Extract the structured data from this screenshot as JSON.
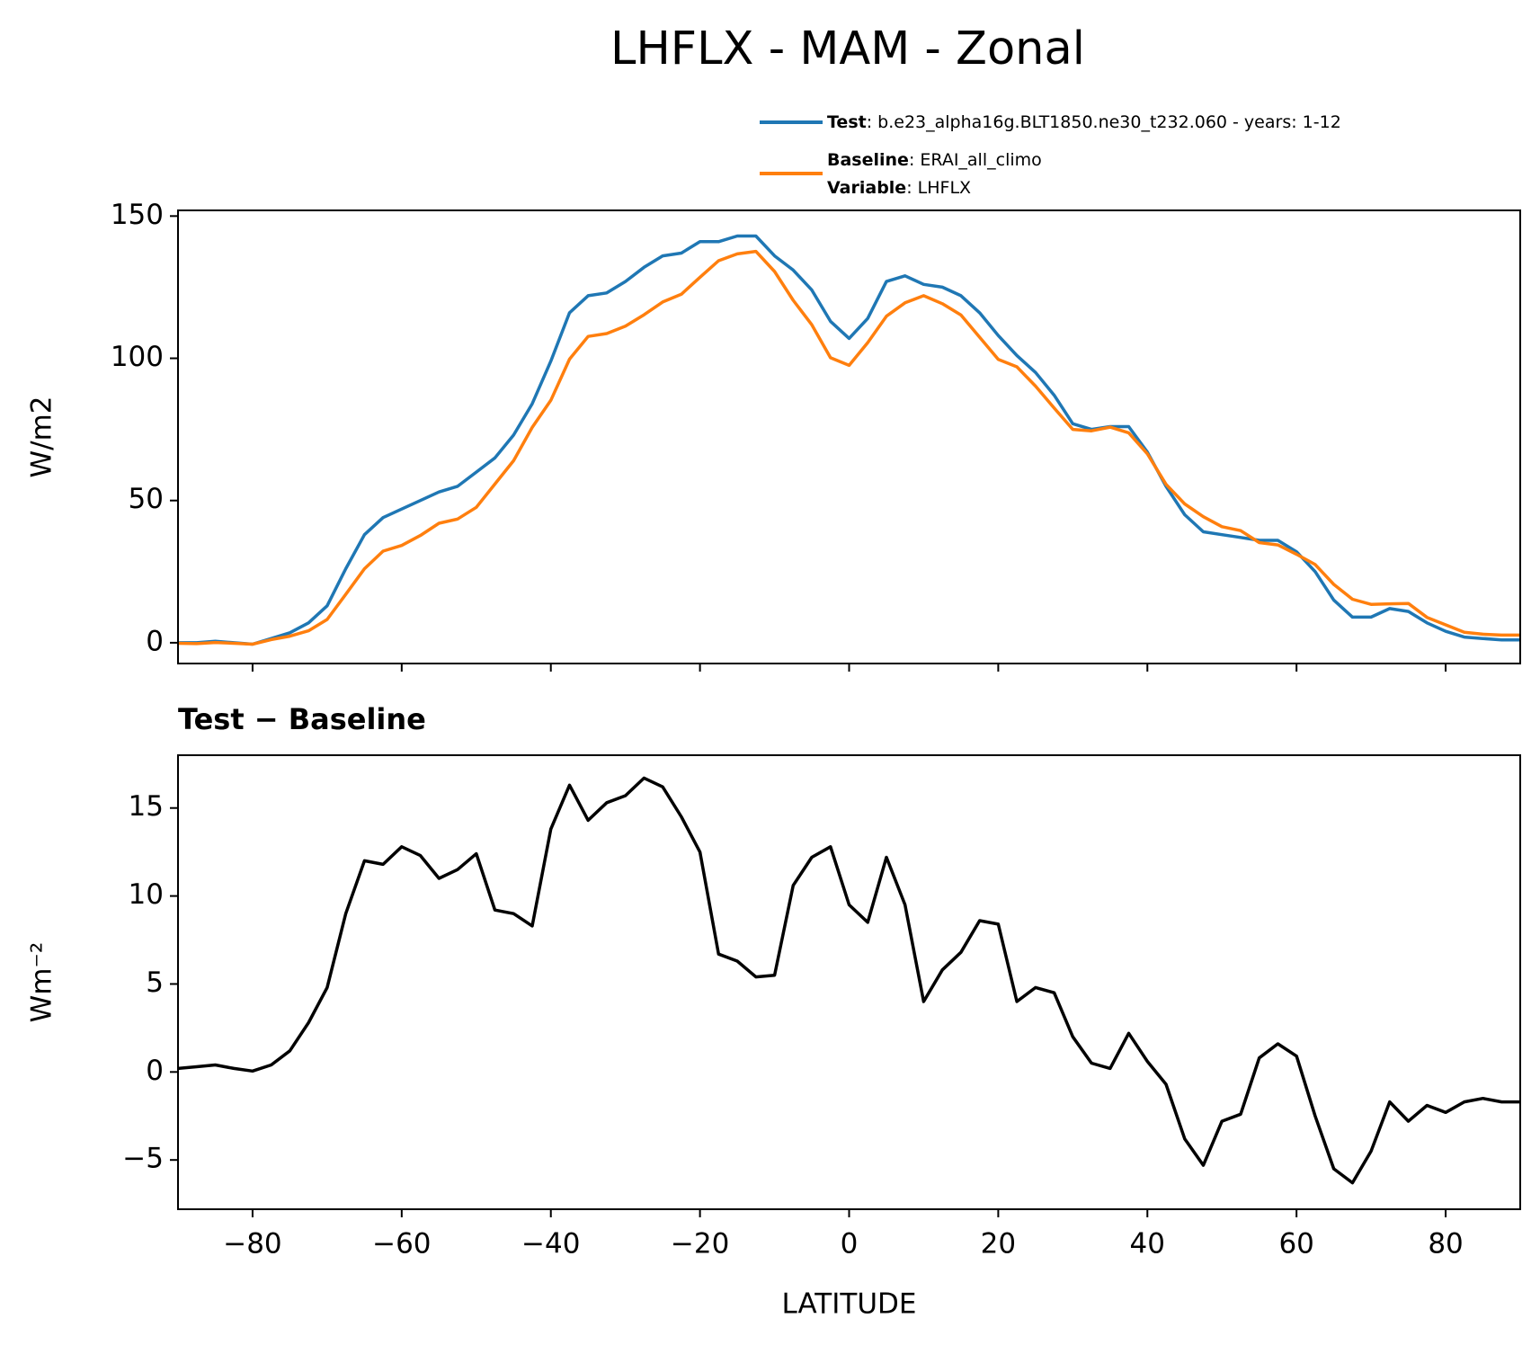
{
  "chart_data": [
    {
      "type": "line",
      "title": "LHFLX - MAM - Zonal",
      "ylabel": "W/m2",
      "x": [
        -90,
        -87.5,
        -85,
        -82.5,
        -80,
        -77.5,
        -75,
        -72.5,
        -70,
        -67.5,
        -65,
        -62.5,
        -60,
        -57.5,
        -55,
        -52.5,
        -50,
        -47.5,
        -45,
        -42.5,
        -40,
        -37.5,
        -35,
        -32.5,
        -30,
        -27.5,
        -25,
        -22.5,
        -20,
        -17.5,
        -15,
        -12.5,
        -10,
        -7.5,
        -5,
        -2.5,
        0,
        2.5,
        5,
        7.5,
        10,
        12.5,
        15,
        17.5,
        20,
        22.5,
        25,
        27.5,
        30,
        32.5,
        35,
        37.5,
        40,
        42.5,
        45,
        47.5,
        50,
        52.5,
        55,
        57.5,
        60,
        62.5,
        65,
        67.5,
        70,
        72.5,
        75,
        77.5,
        80,
        82.5,
        85,
        87.5,
        90
      ],
      "series": [
        {
          "name": "Test",
          "label": ": b.e23_alpha16g.BLT1850.ne30_t232.060 - years: 1-12",
          "color": "#1f77b4",
          "values": [
            0,
            0,
            0.5,
            0,
            -0.5,
            1.5,
            3.5,
            7,
            13,
            26,
            38,
            44,
            47,
            50,
            53,
            55,
            60,
            65,
            73,
            84,
            99,
            116,
            122,
            123,
            127,
            132,
            136,
            137,
            141,
            141,
            143,
            143,
            136,
            131,
            124,
            113,
            107,
            114,
            127,
            129,
            126,
            125,
            122,
            116,
            108,
            101,
            95,
            87,
            77,
            75,
            76,
            76,
            67,
            55,
            45,
            39,
            38,
            37,
            36,
            36,
            32,
            25,
            15,
            9,
            9,
            12,
            11,
            7,
            4,
            2,
            1.5,
            1,
            1
          ]
        },
        {
          "name": "Baseline",
          "label": ": ERAI_all_climo",
          "color": "#ff7f0e",
          "values": [
            -0.2,
            -0.3,
            0.1,
            -0.2,
            -0.5,
            1.1,
            2.3,
            4.2,
            8.2,
            17,
            26,
            32.2,
            34.2,
            37.7,
            42,
            43.5,
            47.6,
            55.8,
            64,
            75.7,
            85.2,
            99.7,
            107.7,
            108.7,
            111.3,
            115.3,
            119.8,
            122.5,
            128.5,
            134.3,
            136.7,
            137.6,
            130.5,
            120.4,
            111.8,
            100.2,
            97.5,
            105.5,
            114.8,
            119.5,
            122,
            119.2,
            115.2,
            107.4,
            99.6,
            97,
            90.2,
            82.5,
            75,
            74.5,
            75.8,
            73.8,
            66.4,
            55.7,
            48.8,
            44.3,
            40.8,
            39.4,
            35.2,
            34.4,
            31.1,
            27.5,
            20.5,
            15.3,
            13.5,
            13.7,
            13.8,
            8.9,
            6.3,
            3.7,
            3,
            2.7,
            2.7
          ]
        }
      ],
      "legend_extra": {
        "name": "Variable",
        "label": ": LHFLX"
      },
      "xlim": [
        -90,
        90
      ],
      "xticks": [
        -80,
        -60,
        -40,
        -20,
        0,
        20,
        40,
        60,
        80
      ],
      "ylim": [
        -7.3,
        152
      ],
      "yticks": [
        0,
        50,
        100,
        150
      ]
    },
    {
      "type": "line",
      "title": "Test − Baseline",
      "ylabel": "Wm⁻²",
      "xlabel": "LATITUDE",
      "x": [
        -90,
        -87.5,
        -85,
        -82.5,
        -80,
        -77.5,
        -75,
        -72.5,
        -70,
        -67.5,
        -65,
        -62.5,
        -60,
        -57.5,
        -55,
        -52.5,
        -50,
        -47.5,
        -45,
        -42.5,
        -40,
        -37.5,
        -35,
        -32.5,
        -30,
        -27.5,
        -25,
        -22.5,
        -20,
        -17.5,
        -15,
        -12.5,
        -10,
        -7.5,
        -5,
        -2.5,
        0,
        2.5,
        5,
        7.5,
        10,
        12.5,
        15,
        17.5,
        20,
        22.5,
        25,
        27.5,
        30,
        32.5,
        35,
        37.5,
        40,
        42.5,
        45,
        47.5,
        50,
        52.5,
        55,
        57.5,
        60,
        62.5,
        65,
        67.5,
        70,
        72.5,
        75,
        77.5,
        80,
        82.5,
        85,
        87.5,
        90
      ],
      "series": [
        {
          "color": "#000000",
          "values": [
            0.2,
            0.3,
            0.4,
            0.2,
            0.05,
            0.4,
            1.2,
            2.8,
            4.8,
            9,
            12,
            11.8,
            12.8,
            12.3,
            11,
            11.5,
            12.4,
            9.2,
            9,
            8.3,
            13.8,
            16.3,
            14.3,
            15.3,
            15.7,
            16.7,
            16.2,
            14.5,
            12.5,
            6.7,
            6.3,
            5.4,
            5.5,
            10.6,
            12.2,
            12.8,
            9.5,
            8.5,
            12.2,
            9.5,
            4,
            5.8,
            6.8,
            8.6,
            8.4,
            4,
            4.8,
            4.5,
            2,
            0.5,
            0.2,
            2.2,
            0.6,
            -0.7,
            -3.8,
            -5.3,
            -2.8,
            -2.4,
            0.8,
            1.6,
            0.9,
            -2.5,
            -5.5,
            -6.3,
            -4.5,
            -1.7,
            -2.8,
            -1.9,
            -2.3,
            -1.7,
            -1.5,
            -1.7,
            -1.7
          ]
        }
      ],
      "xlim": [
        -90,
        90
      ],
      "xticks": [
        {
          "value": -80,
          "label": "−80"
        },
        {
          "value": -60,
          "label": "−60"
        },
        {
          "value": -40,
          "label": "−40"
        },
        {
          "value": -20,
          "label": "−20"
        },
        0,
        20,
        40,
        60,
        80
      ],
      "ylim": [
        -7.8,
        18
      ],
      "yticks": [
        {
          "value": -5,
          "label": "−5"
        },
        0,
        5,
        10,
        15
      ]
    }
  ]
}
